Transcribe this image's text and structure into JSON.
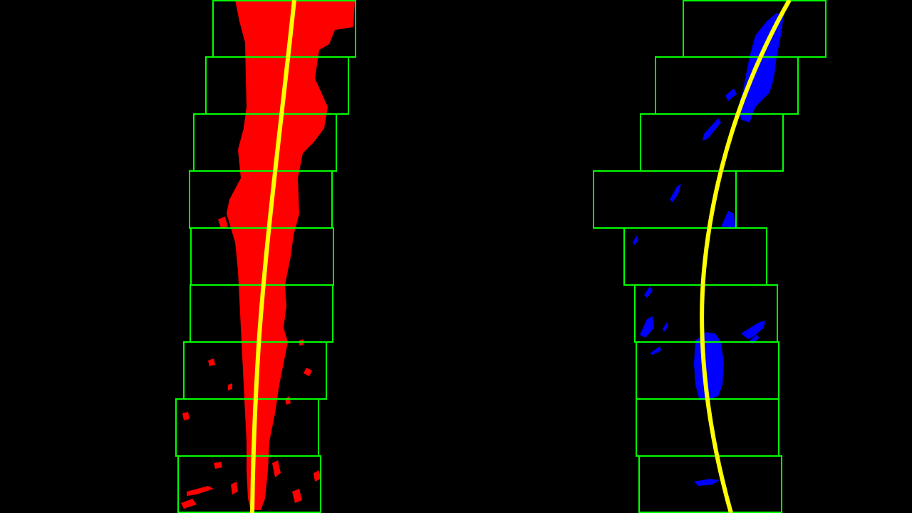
{
  "colors": {
    "background": "#000000",
    "left_lane_pixels": "#ff0000",
    "right_lane_pixels": "#0000ff",
    "search_window": "#00ff00",
    "fit_curve": "#ffff00"
  },
  "left_lane": {
    "label": "left-lane",
    "window_count": 9
  },
  "right_lane": {
    "label": "right-lane",
    "window_count": 9
  }
}
